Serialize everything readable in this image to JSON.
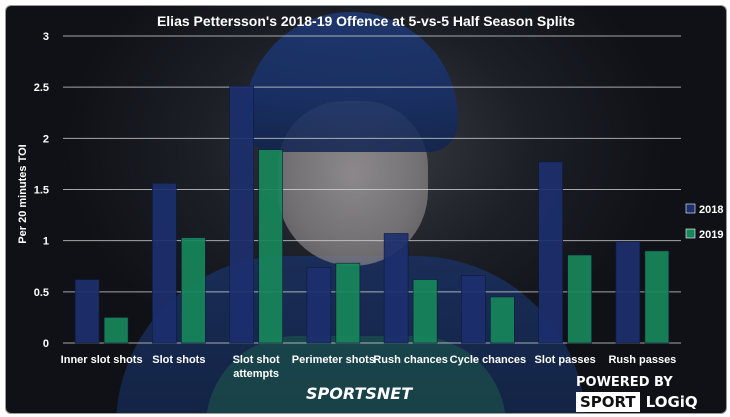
{
  "chart_data": {
    "type": "bar",
    "title": "Elias Pettersson's 2018-19 Offence at 5-vs-5 Half Season Splits",
    "xlabel": "",
    "ylabel": "Per 20 minutes TOI",
    "ylim": [
      0,
      3
    ],
    "yticks": [
      "0",
      "0.5",
      "1",
      "1.5",
      "2",
      "2.5",
      "3"
    ],
    "grid": true,
    "legend_position": "right",
    "categories": [
      [
        "Inner slot shots"
      ],
      [
        "Slot shots"
      ],
      [
        "Slot shot",
        "attempts"
      ],
      [
        "Perimeter shots"
      ],
      [
        "Rush chances"
      ],
      [
        "Cycle chances"
      ],
      [
        "Slot passes"
      ],
      [
        "Rush passes"
      ]
    ],
    "series": [
      {
        "name": "2018",
        "color": "#1c2f6e",
        "values": [
          0.62,
          1.56,
          2.51,
          0.74,
          1.07,
          0.66,
          1.77,
          0.99
        ]
      },
      {
        "name": "2019",
        "color": "#17875a",
        "values": [
          0.25,
          1.03,
          1.89,
          0.78,
          0.62,
          0.45,
          0.86,
          0.9
        ]
      }
    ]
  },
  "branding": {
    "sportsnet": "SPORTSNET",
    "powered_by": "POWERED BY",
    "sport": "SPORT",
    "logiq": "LOGiQ"
  }
}
